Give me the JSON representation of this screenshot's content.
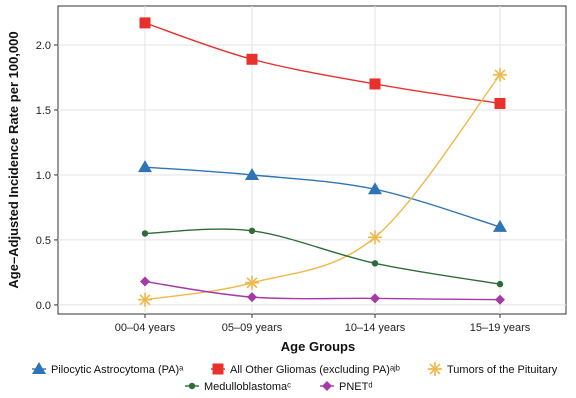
{
  "chart_data": {
    "type": "line",
    "categories": [
      "00–04 years",
      "05–09 years",
      "10–14 years",
      "15–19 years"
    ],
    "xlabel": "Age Groups",
    "ylabel": "Age–Adjusted Incidence Rate per 100,000",
    "ylim": [
      -0.07,
      2.3
    ],
    "yticks": [
      0.0,
      0.5,
      1.0,
      1.5,
      2.0
    ],
    "ytick_labels": [
      "0.0",
      "0.5",
      "1.0",
      "1.5",
      "2.0"
    ],
    "grid": true,
    "legend_position": "bottom",
    "series": [
      {
        "name": "Pilocytic Astrocytoma (PA)ᵃ",
        "values": [
          1.06,
          1.0,
          0.89,
          0.6
        ],
        "color": "#2f74b5",
        "marker": "triangle"
      },
      {
        "name": "All Other Gliomas (excluding PA)ᵃʲᵇ",
        "values": [
          2.17,
          1.89,
          1.7,
          1.55
        ],
        "color": "#e8302c",
        "marker": "square"
      },
      {
        "name": "Tumors of the Pituitary",
        "values": [
          0.04,
          0.17,
          0.52,
          1.77
        ],
        "color": "#f0b84a",
        "marker": "asterisk"
      },
      {
        "name": "Medulloblastomaᶜ",
        "values": [
          0.55,
          0.57,
          0.32,
          0.16
        ],
        "color": "#2e6b3a",
        "marker": "dot"
      },
      {
        "name": "PNETᵈ",
        "values": [
          0.18,
          0.06,
          0.05,
          0.04
        ],
        "color": "#a43aa7",
        "marker": "diamond"
      }
    ]
  }
}
